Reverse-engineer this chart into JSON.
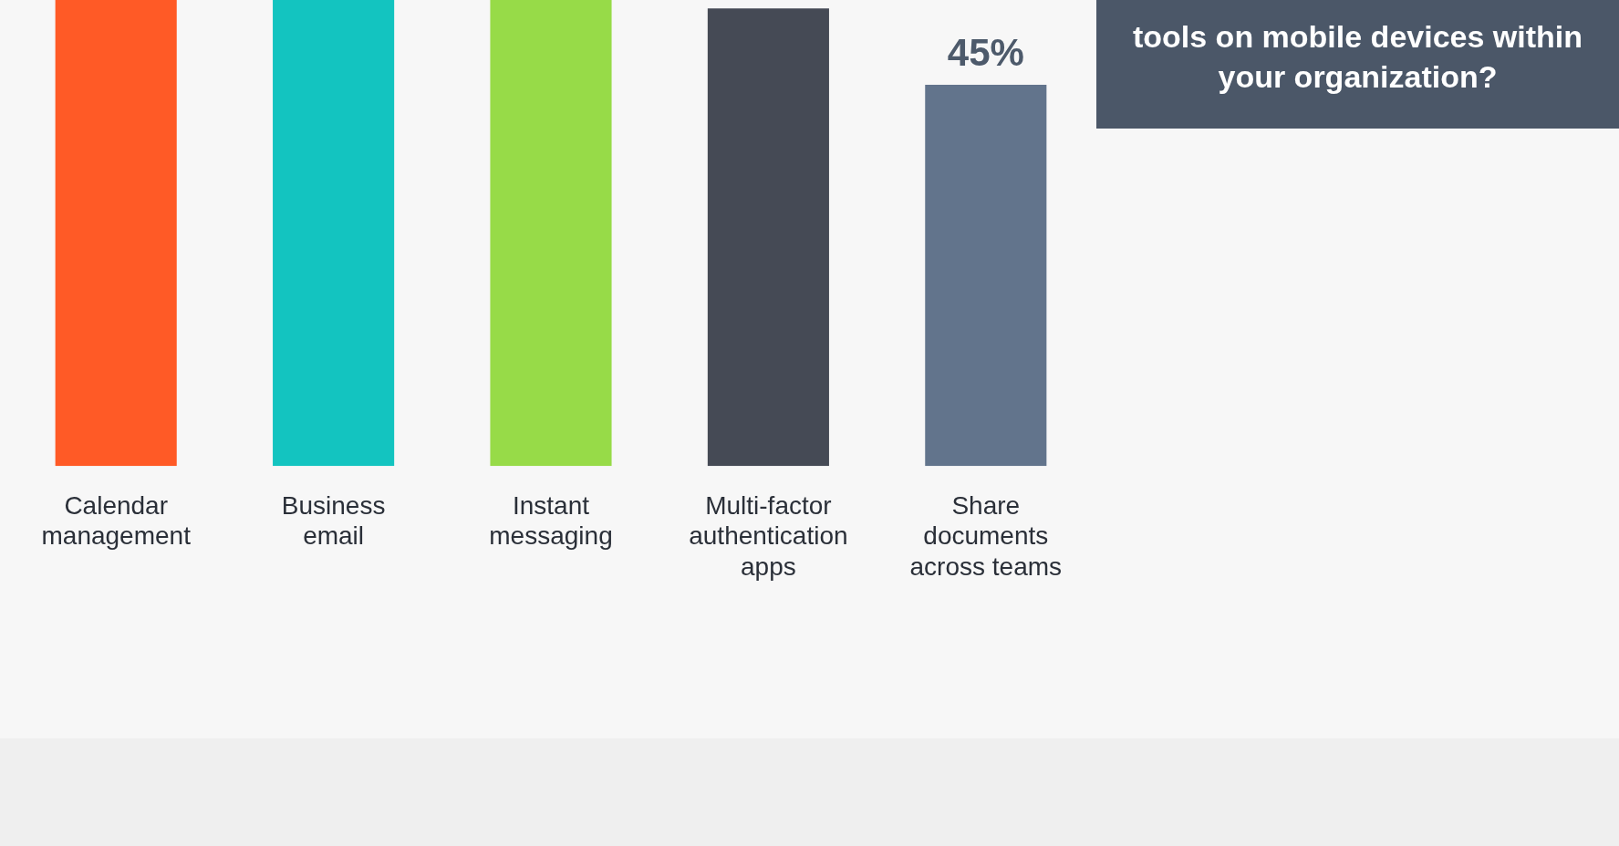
{
  "chart_data": {
    "type": "bar",
    "title": "tools on mobile devices within your organization?",
    "categories": [
      "Calendar management",
      "Business email",
      "Instant messaging",
      "Multi-factor authentication apps",
      "Share documents across teams"
    ],
    "values": [
      55,
      55,
      55,
      54,
      45
    ],
    "colors": [
      "#ff5a26",
      "#13c4c0",
      "#97db48",
      "#454a55",
      "#62748c"
    ],
    "value_labels": [
      null,
      null,
      null,
      null,
      "45%"
    ],
    "ylim": [
      0,
      55
    ],
    "relative": false,
    "grid": false,
    "legend": false
  }
}
